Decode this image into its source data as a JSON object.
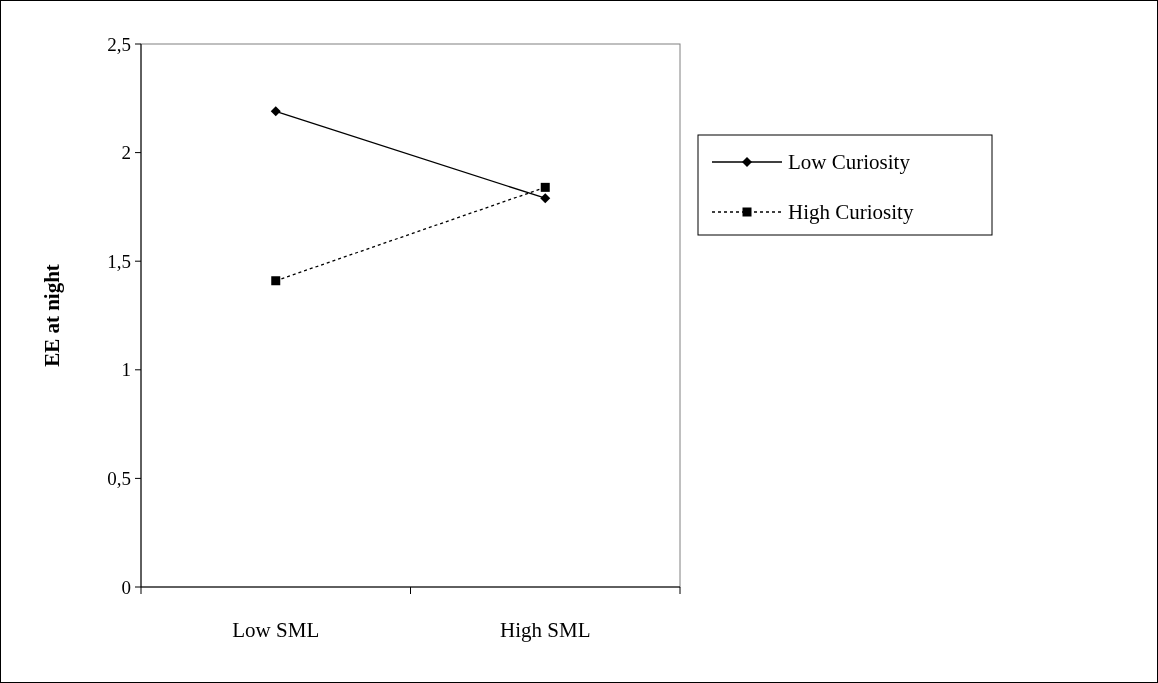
{
  "chart_data": {
    "type": "line",
    "ylabel": "EE at night",
    "categories": [
      "Low SML",
      "High SML"
    ],
    "series": [
      {
        "name": "Low Curiosity",
        "color": "#000000",
        "values": [
          2.19,
          1.79
        ],
        "marker": "diamond",
        "line_style": "solid"
      },
      {
        "name": "High Curiosity",
        "color": "#000000",
        "values": [
          1.41,
          1.84
        ],
        "marker": "square",
        "line_style": "dotted"
      }
    ],
    "ylim": [
      0,
      2.5
    ],
    "yticks": [
      {
        "value": 0,
        "label": "0"
      },
      {
        "value": 0.5,
        "label": "0,5"
      },
      {
        "value": 1,
        "label": "1"
      },
      {
        "value": 1.5,
        "label": "1,5"
      },
      {
        "value": 2,
        "label": "2"
      },
      {
        "value": 2.5,
        "label": "2,5"
      }
    ],
    "grid": false,
    "legend": "right"
  }
}
